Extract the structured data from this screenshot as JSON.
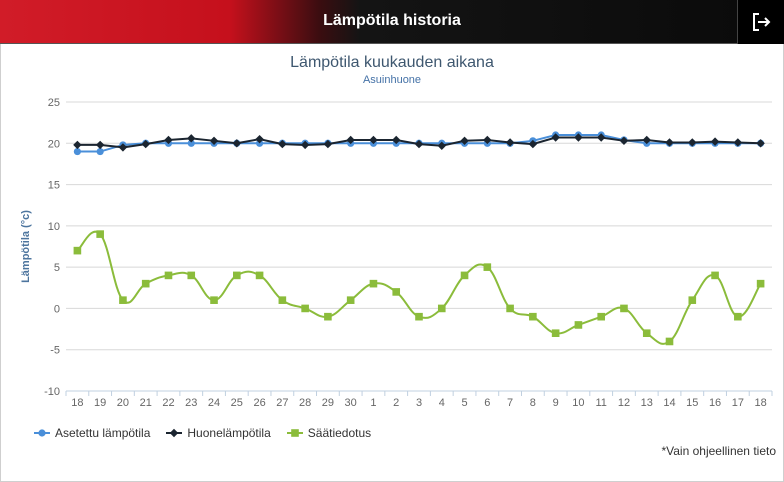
{
  "header": {
    "title": "Lämpötila historia",
    "exit_icon": "logout-icon"
  },
  "chart_data": {
    "type": "line",
    "title": "Lämpötila kuukauden aikana",
    "subtitle": "Asuinhuone",
    "xlabel": "",
    "ylabel": "Lämpötila (°c)",
    "ylim": [
      -10,
      25
    ],
    "yticks": [
      -10,
      -5,
      0,
      5,
      10,
      15,
      20,
      25
    ],
    "grid": true,
    "legend_position": "bottom-left",
    "categories": [
      "18",
      "19",
      "20",
      "21",
      "22",
      "23",
      "24",
      "25",
      "26",
      "27",
      "28",
      "29",
      "30",
      "1",
      "2",
      "3",
      "4",
      "5",
      "6",
      "7",
      "8",
      "9",
      "10",
      "11",
      "12",
      "13",
      "14",
      "15",
      "16",
      "17",
      "18"
    ],
    "series": [
      {
        "name": "Asetettu lämpötila",
        "color": "#4a8fd9",
        "marker": "circle",
        "values": [
          19,
          19,
          19.8,
          20,
          20,
          20,
          20,
          20,
          20,
          20,
          20,
          20,
          20,
          20,
          20,
          20,
          20,
          20,
          20,
          20,
          20.3,
          21,
          21,
          21,
          20.4,
          20,
          20,
          20,
          20,
          20,
          20
        ]
      },
      {
        "name": "Huonelämpötila",
        "color": "#1b2530",
        "marker": "diamond",
        "values": [
          19.8,
          19.8,
          19.5,
          19.9,
          20.4,
          20.6,
          20.3,
          20,
          20.5,
          19.9,
          19.8,
          19.9,
          20.4,
          20.4,
          20.4,
          19.9,
          19.7,
          20.3,
          20.4,
          20.1,
          19.9,
          20.7,
          20.7,
          20.7,
          20.3,
          20.4,
          20.1,
          20.1,
          20.2,
          20.1,
          20
        ]
      },
      {
        "name": "Säätiedotus",
        "color": "#8bbc3b",
        "marker": "square",
        "values": [
          7,
          9,
          1,
          3,
          4,
          4,
          1,
          4,
          4,
          1,
          0,
          -1,
          1,
          3,
          2,
          -1,
          0,
          4,
          5,
          0,
          -1,
          -3,
          -2,
          -1,
          0,
          -3,
          -4,
          1,
          4,
          -1,
          3
        ]
      }
    ]
  },
  "footnote": "*Vain ohjeellinen tieto"
}
